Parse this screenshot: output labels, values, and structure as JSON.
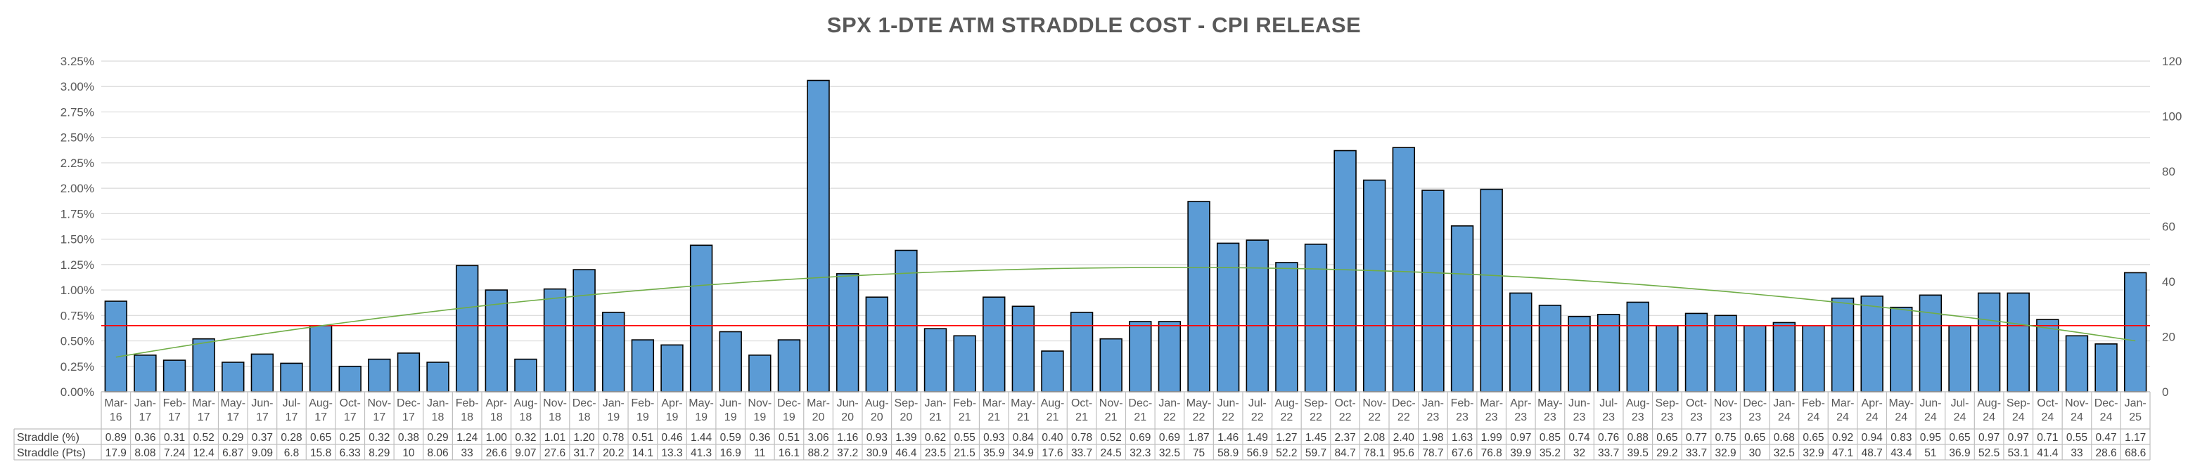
{
  "chart_data": {
    "type": "bar",
    "title": "SPX 1-DTE ATM STRADDLE COST - CPI RELEASE",
    "categories": [
      "Mar-16",
      "Jan-17",
      "Feb-17",
      "Mar-17",
      "May-17",
      "Jun-17",
      "Jul-17",
      "Aug-17",
      "Oct-17",
      "Nov-17",
      "Dec-17",
      "Jan-18",
      "Feb-18",
      "Apr-18",
      "Aug-18",
      "Nov-18",
      "Dec-18",
      "Jan-19",
      "Feb-19",
      "Apr-19",
      "May-19",
      "Jun-19",
      "Nov-19",
      "Dec-19",
      "Mar-20",
      "Jun-20",
      "Aug-20",
      "Sep-20",
      "Jan-21",
      "Feb-21",
      "Mar-21",
      "May-21",
      "Aug-21",
      "Oct-21",
      "Nov-21",
      "Dec-21",
      "Jan-22",
      "May-22",
      "Jun-22",
      "Jul-22",
      "Aug-22",
      "Sep-22",
      "Oct-22",
      "Nov-22",
      "Dec-22",
      "Jan-23",
      "Feb-23",
      "Mar-23",
      "Apr-23",
      "May-23",
      "Jun-23",
      "Jul-23",
      "Aug-23",
      "Sep-23",
      "Oct-23",
      "Nov-23",
      "Dec-23",
      "Jan-24",
      "Feb-24",
      "Mar-24",
      "Apr-24",
      "May-24",
      "Jun-24",
      "Jul-24",
      "Aug-24",
      "Sep-24",
      "Oct-24",
      "Nov-24",
      "Dec-24",
      "Jan-25"
    ],
    "series": [
      {
        "name": "Straddle (%)",
        "values": [
          0.89,
          0.36,
          0.31,
          0.52,
          0.29,
          0.37,
          0.28,
          0.65,
          0.25,
          0.32,
          0.38,
          0.29,
          1.24,
          1.0,
          0.32,
          1.01,
          1.2,
          0.78,
          0.51,
          0.46,
          1.44,
          0.59,
          0.36,
          0.51,
          3.06,
          1.16,
          0.93,
          1.39,
          0.62,
          0.55,
          0.93,
          0.84,
          0.4,
          0.78,
          0.52,
          0.69,
          0.69,
          1.87,
          1.46,
          1.49,
          1.27,
          1.45,
          2.37,
          2.08,
          2.4,
          1.98,
          1.63,
          1.99,
          0.97,
          0.85,
          0.74,
          0.76,
          0.88,
          0.65,
          0.77,
          0.75,
          0.65,
          0.68,
          0.65,
          0.92,
          0.94,
          0.83,
          0.95,
          0.65,
          0.97,
          0.97,
          0.71,
          0.55,
          0.47,
          1.17
        ],
        "display": [
          "0.89",
          "0.36",
          "0.31",
          "0.52",
          "0.29",
          "0.37",
          "0.28",
          "0.65",
          "0.25",
          "0.32",
          "0.38",
          "0.29",
          "1.24",
          "1.00",
          "0.32",
          "1.01",
          "1.20",
          "0.78",
          "0.51",
          "0.46",
          "1.44",
          "0.59",
          "0.36",
          "0.51",
          "3.06",
          "1.16",
          "0.93",
          "1.39",
          "0.62",
          "0.55",
          "0.93",
          "0.84",
          "0.40",
          "0.78",
          "0.52",
          "0.69",
          "0.69",
          "1.87",
          "1.46",
          "1.49",
          "1.27",
          "1.45",
          "2.37",
          "2.08",
          "2.40",
          "1.98",
          "1.63",
          "1.99",
          "0.97",
          "0.85",
          "0.74",
          "0.76",
          "0.88",
          "0.65",
          "0.77",
          "0.75",
          "0.65",
          "0.68",
          "0.65",
          "0.92",
          "0.94",
          "0.83",
          "0.95",
          "0.65",
          "0.97",
          "0.97",
          "0.71",
          "0.55",
          "0.47",
          "1.17"
        ],
        "color": "#5b9bd5"
      },
      {
        "name": "Straddle (Pts)",
        "display": [
          "17.9",
          "8.08",
          "7.24",
          "12.4",
          "6.87",
          "9.09",
          "6.8",
          "15.8",
          "6.33",
          "8.29",
          "10",
          "8.06",
          "33",
          "26.6",
          "9.07",
          "27.6",
          "31.7",
          "20.2",
          "14.1",
          "13.3",
          "41.3",
          "16.9",
          "11",
          "16.1",
          "88.2",
          "37.2",
          "30.9",
          "46.4",
          "23.5",
          "21.5",
          "35.9",
          "34.9",
          "17.6",
          "33.7",
          "24.5",
          "32.3",
          "32.5",
          "75",
          "58.9",
          "56.9",
          "52.2",
          "59.7",
          "84.7",
          "78.1",
          "95.6",
          "78.7",
          "67.6",
          "76.8",
          "39.9",
          "35.2",
          "32",
          "33.7",
          "39.5",
          "29.2",
          "33.7",
          "32.9",
          "30",
          "32.5",
          "32.9",
          "47.1",
          "48.7",
          "43.4",
          "51",
          "36.9",
          "52.5",
          "53.1",
          "41.4",
          "33",
          "28.6",
          "68.6"
        ]
      }
    ],
    "average_line": {
      "value": 0.65,
      "color": "#ff0000"
    },
    "trendline": {
      "type": "polynomial",
      "color": "#70ad47",
      "start": 0.34,
      "peak": 1.22,
      "end": 0.5
    },
    "y_left": {
      "ylim": [
        0,
        3.25
      ],
      "ticks": [
        "0.00%",
        "0.25%",
        "0.50%",
        "0.75%",
        "1.00%",
        "1.25%",
        "1.50%",
        "1.75%",
        "2.00%",
        "2.25%",
        "2.50%",
        "2.75%",
        "3.00%",
        "3.25%"
      ]
    },
    "y_right": {
      "ylim": [
        0,
        120
      ],
      "ticks": [
        "0",
        "20",
        "40",
        "60",
        "80",
        "100",
        "120"
      ]
    },
    "grid": true,
    "legend": "none"
  }
}
